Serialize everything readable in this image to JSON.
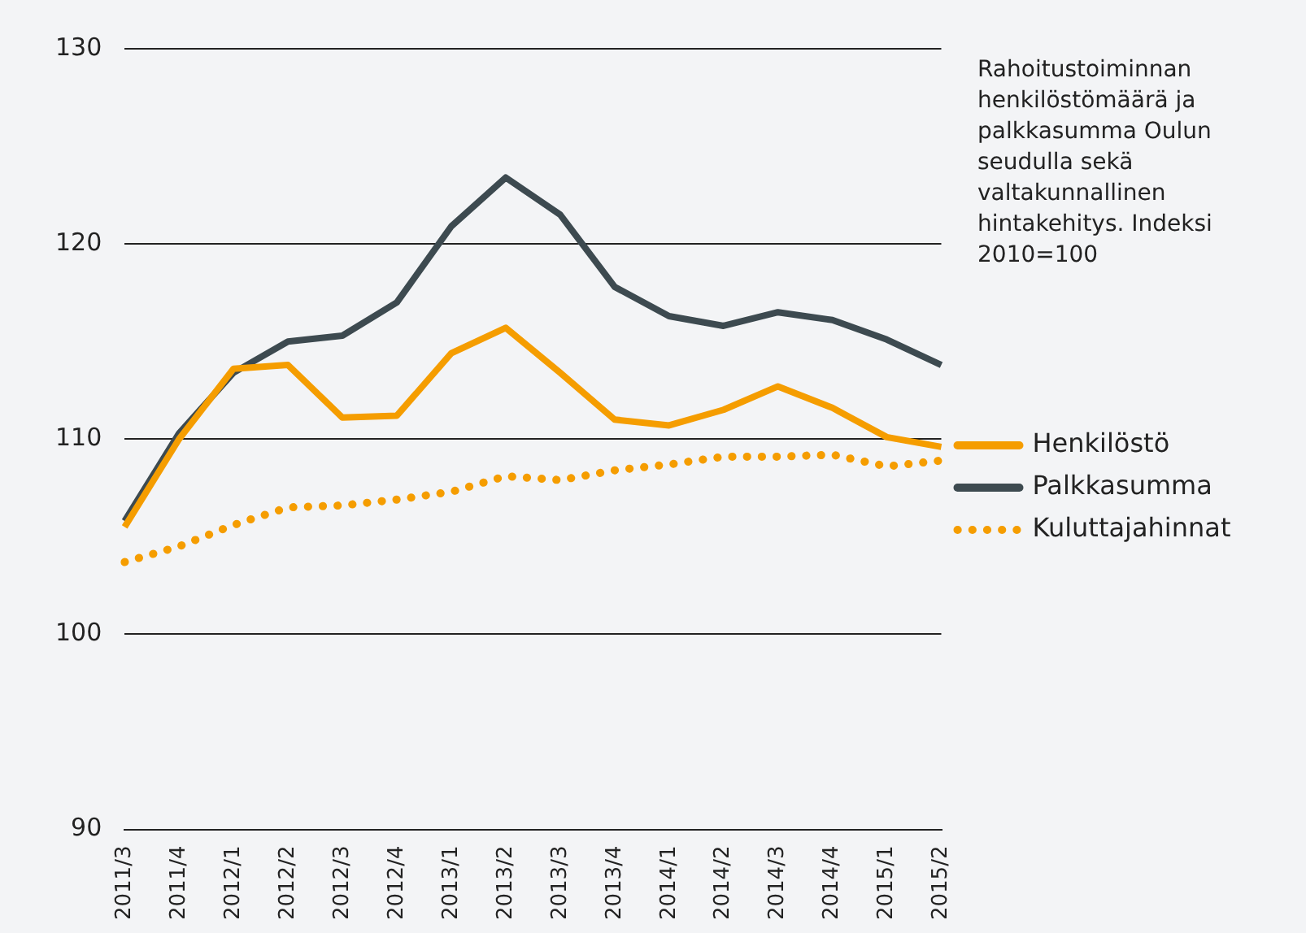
{
  "chart_data": {
    "type": "line",
    "title": "Rahoitustoiminnan henkilöstömäärä ja palkkasumma Oulun seudulla sekä valtakunnallinen hintakehitys. Indeksi 2010=100",
    "categories": [
      "2011/3",
      "2011/4",
      "2012/1",
      "2012/2",
      "2012/3",
      "2012/4",
      "2013/1",
      "2013/2",
      "2013/3",
      "2013/4",
      "2014/1",
      "2014/2",
      "2014/3",
      "2014/4",
      "2015/1",
      "2015/2"
    ],
    "series": [
      {
        "name": "Henkilöstö",
        "color": "#f59d00",
        "line_style": "solid",
        "values": [
          105.5,
          110.0,
          113.6,
          113.8,
          111.1,
          111.2,
          114.4,
          115.7,
          113.4,
          111.0,
          110.7,
          111.5,
          112.7,
          111.6,
          110.1,
          109.6
        ]
      },
      {
        "name": "Palkkasumma",
        "color": "#3d4a50",
        "line_style": "solid",
        "values": [
          105.8,
          110.3,
          113.4,
          115.0,
          115.3,
          117.0,
          120.9,
          123.4,
          121.5,
          117.8,
          116.3,
          115.8,
          116.5,
          116.1,
          115.1,
          113.8
        ]
      },
      {
        "name": "Kuluttajahinnat",
        "color": "#f59d00",
        "line_style": "dotted",
        "values": [
          103.7,
          104.5,
          105.6,
          106.5,
          106.6,
          106.9,
          107.3,
          108.1,
          107.9,
          108.4,
          108.7,
          109.1,
          109.1,
          109.2,
          108.6,
          108.9
        ]
      }
    ],
    "ylim": [
      90,
      130
    ],
    "yticks": [
      90,
      100,
      110,
      120,
      130
    ],
    "grid": "y",
    "legend": "right",
    "marker": "none"
  }
}
